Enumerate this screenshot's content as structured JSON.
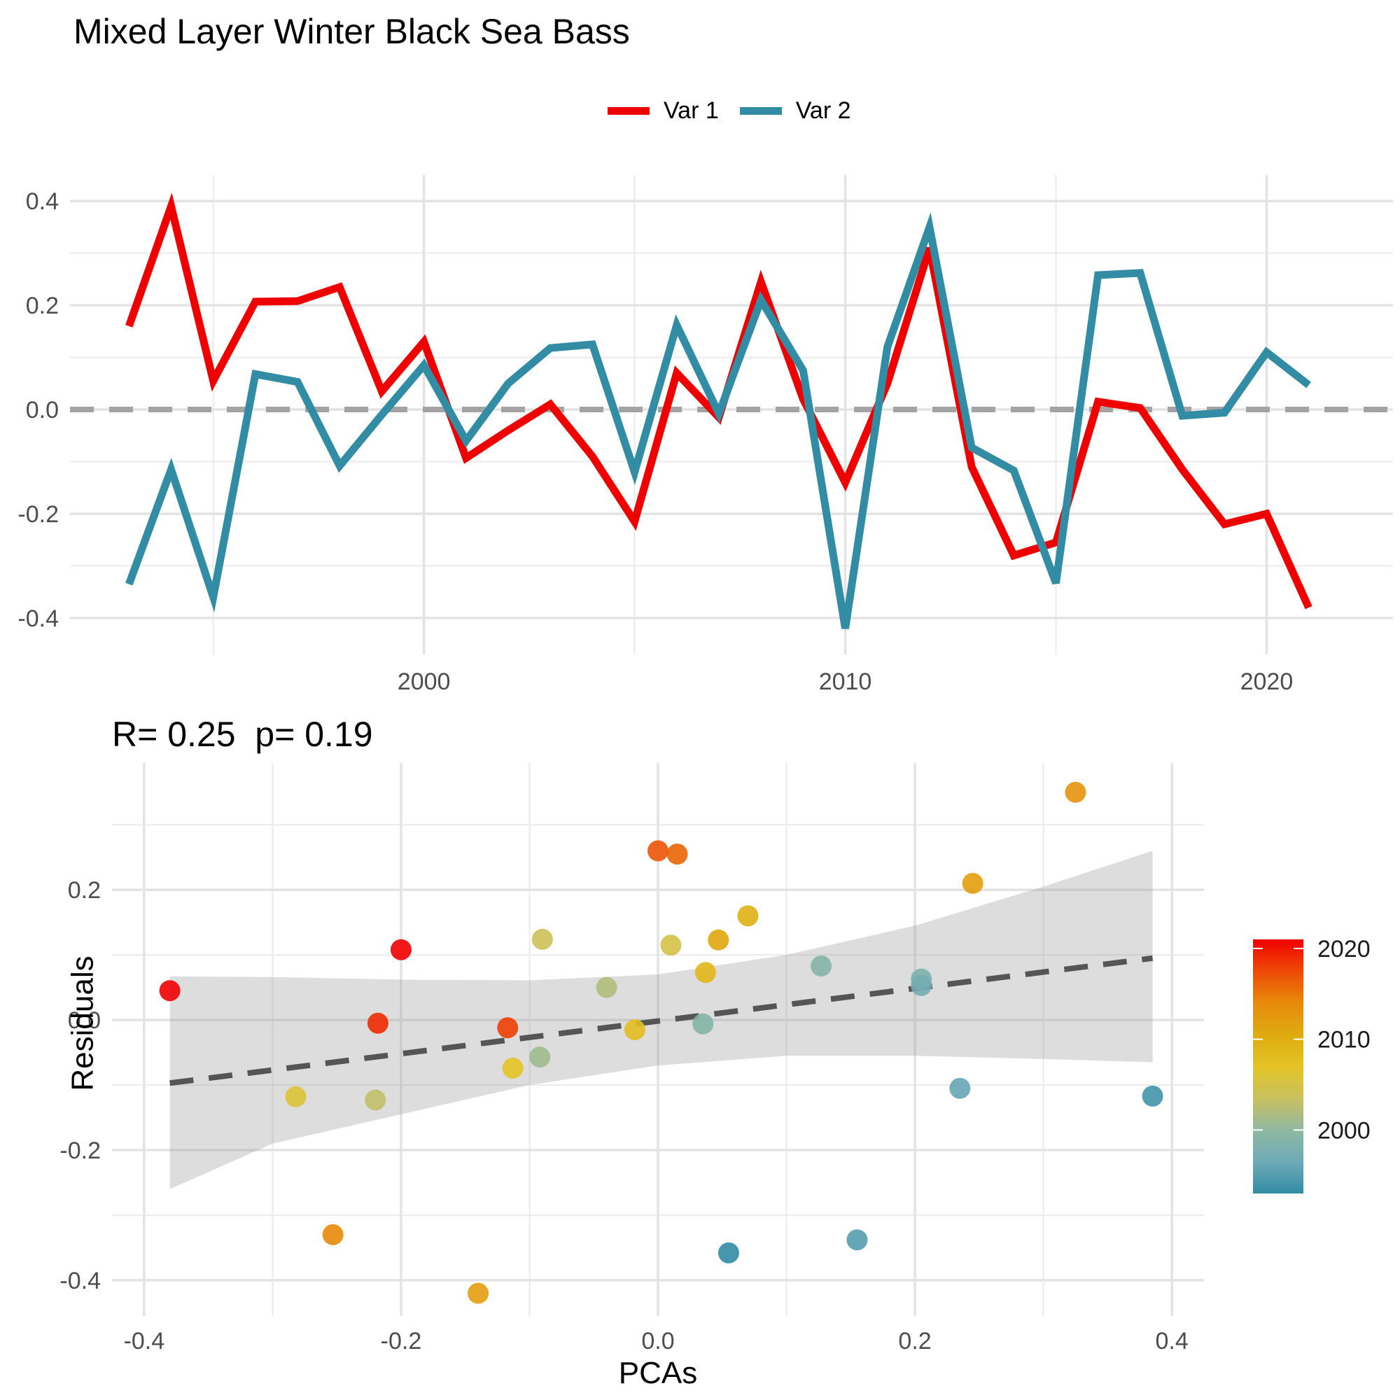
{
  "title": "Mixed Layer Winter Black Sea Bass",
  "chart_data": [
    {
      "type": "line",
      "title": "Mixed Layer Winter Black Sea Bass",
      "xlabel": "",
      "ylabel": "",
      "x": [
        1993,
        1994,
        1995,
        1996,
        1997,
        1998,
        1999,
        2000,
        2001,
        2002,
        2003,
        2004,
        2005,
        2006,
        2007,
        2008,
        2009,
        2010,
        2011,
        2012,
        2013,
        2014,
        2015,
        2016,
        2017,
        2018,
        2019,
        2020,
        2021
      ],
      "series": [
        {
          "name": "Var 1",
          "color": "#EE0000",
          "values": [
            0.16,
            0.39,
            0.055,
            0.207,
            0.208,
            0.235,
            0.035,
            0.13,
            -0.093,
            -0.04,
            0.01,
            -0.09,
            -0.215,
            0.07,
            -0.015,
            0.245,
            0.02,
            -0.14,
            0.05,
            0.31,
            -0.11,
            -0.28,
            -0.255,
            0.015,
            0.003,
            -0.115,
            -0.22,
            -0.2,
            -0.38
          ]
        },
        {
          "name": "Var 2",
          "color": "#318CA4",
          "values": [
            -0.335,
            -0.115,
            -0.36,
            0.068,
            0.053,
            -0.108,
            -0.01,
            0.085,
            -0.06,
            0.05,
            0.118,
            0.125,
            -0.12,
            0.162,
            -0.008,
            0.21,
            0.075,
            -0.42,
            0.12,
            0.35,
            -0.073,
            -0.117,
            -0.333,
            0.258,
            0.262,
            -0.012,
            -0.006,
            0.11,
            0.047
          ]
        }
      ],
      "xlim": [
        1991.6,
        2023.0
      ],
      "ylim": [
        -0.47,
        0.45
      ],
      "x_ticks": [
        "2000",
        "2010",
        "2020"
      ],
      "x_tick_values": [
        2000,
        2010,
        2020
      ],
      "y_ticks": [
        "-0.4",
        "-0.2",
        "0.0",
        "0.2",
        "0.4"
      ],
      "y_tick_values": [
        -0.4,
        -0.2,
        0.0,
        0.2,
        0.4
      ],
      "reference_line": 0,
      "legend": {
        "position": "top",
        "entries": [
          "Var 1",
          "Var 2"
        ]
      },
      "grid": true
    },
    {
      "type": "scatter",
      "title": "R= 0.25  p= 0.19",
      "xlabel": "PCAs",
      "ylabel": "Residuals",
      "xlim": [
        -0.425,
        0.425
      ],
      "ylim": [
        -0.455,
        0.395
      ],
      "x_ticks": [
        "-0.4",
        "-0.2",
        "0.0",
        "0.2",
        "0.4"
      ],
      "x_tick_values": [
        -0.4,
        -0.2,
        0.0,
        0.2,
        0.4
      ],
      "y_ticks": [
        "-0.4",
        "-0.2",
        "0.0",
        "0.2"
      ],
      "y_tick_values": [
        -0.4,
        -0.2,
        0.0,
        0.2
      ],
      "points": [
        {
          "x": -0.38,
          "y": 0.045,
          "year": 2021
        },
        {
          "x": 0.055,
          "y": -0.358,
          "year": 1993
        },
        {
          "x": 0.155,
          "y": -0.338,
          "year": 1995
        },
        {
          "x": 0.385,
          "y": -0.117,
          "year": 1994
        },
        {
          "x": -0.22,
          "y": -0.123,
          "year": 2003
        },
        {
          "x": 0.235,
          "y": -0.105,
          "year": 1996
        },
        {
          "x": 0.205,
          "y": 0.063,
          "year": 1998
        },
        {
          "x": 0.205,
          "y": 0.053,
          "year": 1997
        },
        {
          "x": 0.127,
          "y": 0.083,
          "year": 1999
        },
        {
          "x": 0.035,
          "y": -0.006,
          "year": 1999
        },
        {
          "x": -0.092,
          "y": -0.057,
          "year": 2001
        },
        {
          "x": -0.04,
          "y": 0.05,
          "year": 2002
        },
        {
          "x": -0.09,
          "y": 0.124,
          "year": 2004
        },
        {
          "x": 0.01,
          "y": 0.115,
          "year": 2005
        },
        {
          "x": -0.282,
          "y": -0.118,
          "year": 2006
        },
        {
          "x": -0.113,
          "y": -0.074,
          "year": 2007
        },
        {
          "x": -0.018,
          "y": -0.015,
          "year": 2008
        },
        {
          "x": 0.037,
          "y": 0.073,
          "year": 2009
        },
        {
          "x": 0.07,
          "y": 0.16,
          "year": 2010
        },
        {
          "x": 0.047,
          "y": 0.123,
          "year": 2011
        },
        {
          "x": 0.245,
          "y": 0.21,
          "year": 2012
        },
        {
          "x": -0.14,
          "y": -0.42,
          "year": 2012
        },
        {
          "x": 0.325,
          "y": 0.35,
          "year": 2013
        },
        {
          "x": -0.253,
          "y": -0.33,
          "year": 2014
        },
        {
          "x": 0.015,
          "y": 0.255,
          "year": 2016
        },
        {
          "x": 0.0,
          "y": 0.26,
          "year": 2017
        },
        {
          "x": -0.117,
          "y": -0.012,
          "year": 2018
        },
        {
          "x": -0.218,
          "y": -0.005,
          "year": 2019
        },
        {
          "x": -0.2,
          "y": 0.108,
          "year": 2021
        }
      ],
      "trend_line": {
        "x": [
          -0.38,
          0.385
        ],
        "y": [
          -0.097,
          0.095
        ]
      },
      "confidence_band": {
        "x": [
          -0.38,
          -0.3,
          -0.2,
          -0.1,
          0.0,
          0.1,
          0.2,
          0.3,
          0.385
        ],
        "upper": [
          0.067,
          0.066,
          0.062,
          0.061,
          0.07,
          0.1,
          0.145,
          0.205,
          0.26
        ],
        "lower": [
          -0.26,
          -0.19,
          -0.145,
          -0.1,
          -0.07,
          -0.055,
          -0.055,
          -0.06,
          -0.065
        ]
      },
      "colorbar": {
        "min_year": 1993,
        "max_year": 2021,
        "ticks": [
          "2000",
          "2010",
          "2020"
        ],
        "tick_values": [
          2000,
          2010,
          2020
        ],
        "colors": [
          "#318CA4",
          "#6FAAB8",
          "#8FB8A0",
          "#C9C060",
          "#E4C425",
          "#DEAB10",
          "#E88A0A",
          "#EE4A05",
          "#F00000"
        ]
      },
      "grid": true
    }
  ]
}
